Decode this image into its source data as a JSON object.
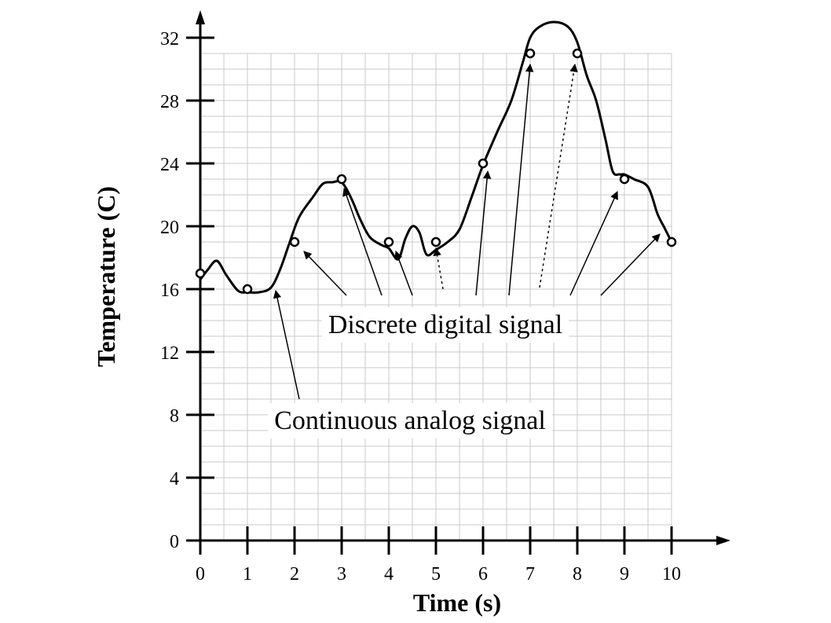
{
  "chart_data": {
    "type": "line",
    "xlabel": "Time (s)",
    "ylabel": "Temperature (C)",
    "xlim": [
      0,
      10
    ],
    "ylim": [
      0,
      32
    ],
    "x_ticks": [
      "0",
      "1",
      "2",
      "3",
      "4",
      "5",
      "6",
      "7",
      "8",
      "9",
      "10"
    ],
    "y_ticks": [
      "0",
      "4",
      "8",
      "12",
      "16",
      "20",
      "24",
      "28",
      "32"
    ],
    "grid": true,
    "series": [
      {
        "name": "Continuous analog signal",
        "style": "smooth-curve",
        "x": [
          0,
          0.15,
          0.35,
          0.55,
          0.8,
          1.0,
          1.25,
          1.5,
          1.7,
          1.9,
          2.1,
          2.4,
          2.6,
          2.8,
          3.0,
          3.2,
          3.4,
          3.6,
          3.85,
          4.0,
          4.2,
          4.35,
          4.5,
          4.65,
          4.8,
          5.0,
          5.25,
          5.5,
          5.75,
          6.0,
          6.3,
          6.6,
          6.85,
          7.0,
          7.2,
          7.5,
          7.8,
          8.0,
          8.2,
          8.4,
          8.6,
          8.75,
          8.9,
          9.0,
          9.2,
          9.5,
          9.7,
          9.85,
          10.0
        ],
        "y": [
          16.6,
          17.2,
          17.8,
          16.9,
          15.9,
          15.8,
          15.8,
          16.1,
          17.3,
          19.0,
          20.6,
          21.9,
          22.7,
          22.8,
          22.8,
          21.8,
          20.4,
          19.3,
          18.8,
          18.6,
          17.9,
          19.2,
          20.0,
          19.6,
          18.2,
          18.5,
          19.0,
          19.8,
          21.8,
          23.9,
          26.0,
          28.0,
          30.5,
          32.0,
          32.7,
          33.0,
          32.7,
          31.7,
          29.6,
          28.0,
          25.5,
          23.5,
          23.3,
          23.3,
          23.0,
          22.5,
          20.8,
          19.9,
          19.0
        ]
      },
      {
        "name": "Discrete digital signal",
        "style": "points",
        "x": [
          0,
          1,
          2,
          3,
          4,
          5,
          6,
          7,
          8,
          9,
          10
        ],
        "y": [
          17,
          16,
          19,
          23,
          19,
          19,
          24,
          31,
          31,
          23,
          19
        ]
      }
    ],
    "annotations": [
      {
        "text": "Discrete digital signal",
        "anchor": [
          5.2,
          13.8
        ],
        "arrows": [
          {
            "from": [
              3.1,
              15.6
            ],
            "to": [
              2.2,
              18.4
            ],
            "dashed": false
          },
          {
            "from": [
              3.85,
              15.6
            ],
            "to": [
              3.05,
              22.4
            ],
            "dashed": false
          },
          {
            "from": [
              4.5,
              15.6
            ],
            "to": [
              4.15,
              18.4
            ],
            "dashed": false
          },
          {
            "from": [
              5.15,
              16.0
            ],
            "to": [
              5.0,
              18.6
            ],
            "dashed": true
          },
          {
            "from": [
              5.85,
              15.6
            ],
            "to": [
              6.1,
              23.5
            ],
            "dashed": false
          },
          {
            "from": [
              6.55,
              15.6
            ],
            "to": [
              7.0,
              30.3
            ],
            "dashed": false
          },
          {
            "from": [
              7.2,
              16.1
            ],
            "to": [
              7.95,
              30.3
            ],
            "dashed": true
          },
          {
            "from": [
              7.85,
              15.6
            ],
            "to": [
              8.85,
              22.2
            ],
            "dashed": false
          },
          {
            "from": [
              8.5,
              15.6
            ],
            "to": [
              9.75,
              19.5
            ],
            "dashed": false
          }
        ]
      },
      {
        "text": "Continuous analog signal",
        "anchor": [
          4.45,
          7.7
        ],
        "arrows": [
          {
            "from": [
              2.1,
              9.0
            ],
            "to": [
              1.6,
              15.9
            ],
            "dashed": false
          }
        ]
      }
    ]
  }
}
